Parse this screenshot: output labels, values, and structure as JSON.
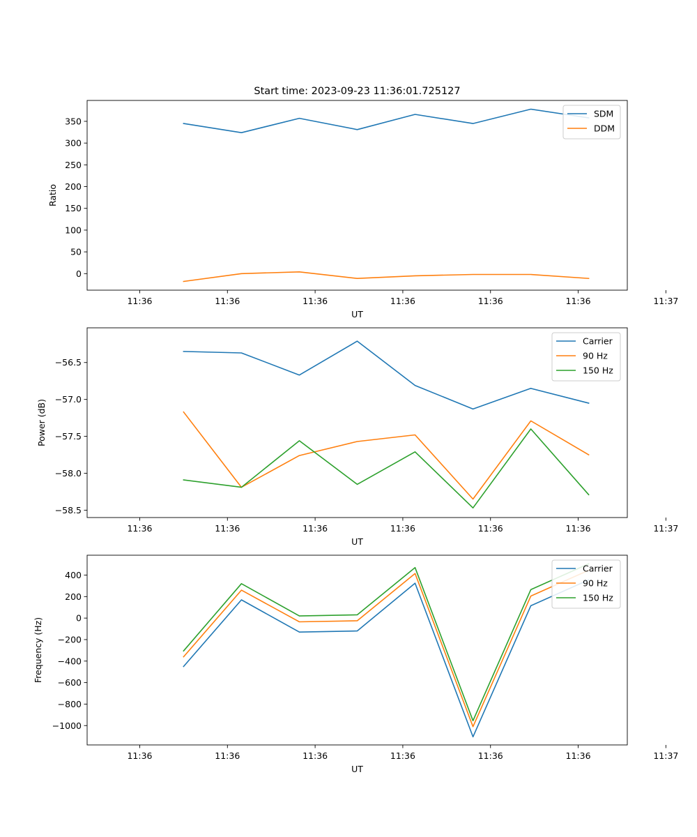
{
  "chart_data": [
    {
      "type": "line",
      "title": "Start time: 2023-09-23 11:36:01.725127",
      "xlabel": "UT",
      "ylabel": "Ratio",
      "xlim": [
        -0.6,
        5.56
      ],
      "ylim": [
        -38,
        398
      ],
      "xtick_values": [
        0,
        1,
        2,
        3,
        4,
        5,
        6
      ],
      "xtick_labels": [
        "11:36",
        "11:36",
        "11:36",
        "11:36",
        "11:36",
        "11:36",
        "11:37"
      ],
      "yticks": [
        0,
        50,
        100,
        150,
        200,
        250,
        300,
        350
      ],
      "legend_position": "top-right",
      "x": [
        0.5,
        1.16,
        1.82,
        2.48,
        3.14,
        3.8,
        4.46,
        5.12
      ],
      "series": [
        {
          "name": "SDM",
          "color": "#1f77b4",
          "values": [
            345,
            324,
            357,
            331,
            366,
            345,
            378,
            358
          ]
        },
        {
          "name": "DDM",
          "color": "#ff7f0e",
          "values": [
            -18,
            0,
            4,
            -11,
            -5,
            -2,
            -2,
            -11
          ]
        }
      ]
    },
    {
      "type": "line",
      "title": "",
      "xlabel": "UT",
      "ylabel": "Power (dB)",
      "xlim": [
        -0.6,
        5.56
      ],
      "ylim": [
        -58.6,
        -56.03
      ],
      "xtick_values": [
        0,
        1,
        2,
        3,
        4,
        5,
        6
      ],
      "xtick_labels": [
        "11:36",
        "11:36",
        "11:36",
        "11:36",
        "11:36",
        "11:36",
        "11:37"
      ],
      "yticks": [
        -58.5,
        -58.0,
        -57.5,
        -57.0,
        -56.5
      ],
      "ytick_labels": [
        "−58.5",
        "−58.0",
        "−57.5",
        "−57.0",
        "−56.5"
      ],
      "legend_position": "top-right",
      "x": [
        0.5,
        1.16,
        1.82,
        2.48,
        3.14,
        3.8,
        4.46,
        5.12
      ],
      "series": [
        {
          "name": "Carrier",
          "color": "#1f77b4",
          "values": [
            -56.35,
            -56.37,
            -56.67,
            -56.21,
            -56.81,
            -57.13,
            -56.85,
            -57.05
          ]
        },
        {
          "name": "90 Hz",
          "color": "#ff7f0e",
          "values": [
            -57.17,
            -58.19,
            -57.76,
            -57.57,
            -57.48,
            -58.35,
            -57.29,
            -57.75
          ]
        },
        {
          "name": "150 Hz",
          "color": "#2ca02c",
          "values": [
            -58.09,
            -58.19,
            -57.56,
            -58.15,
            -57.71,
            -58.47,
            -57.4,
            -58.29
          ]
        }
      ]
    },
    {
      "type": "line",
      "title": "",
      "xlabel": "UT",
      "ylabel": "Frequency (Hz)",
      "xlim": [
        -0.6,
        5.56
      ],
      "ylim": [
        -1180,
        585
      ],
      "xtick_values": [
        0,
        1,
        2,
        3,
        4,
        5,
        6
      ],
      "xtick_labels": [
        "11:36",
        "11:36",
        "11:36",
        "11:36",
        "11:36",
        "11:36",
        "11:37"
      ],
      "yticks": [
        -1000,
        -800,
        -600,
        -400,
        -200,
        0,
        200,
        400
      ],
      "ytick_labels": [
        "−1000",
        "−800",
        "−600",
        "−400",
        "−200",
        "0",
        "200",
        "400"
      ],
      "legend_position": "top-right",
      "x": [
        0.5,
        1.16,
        1.82,
        2.48,
        3.14,
        3.8,
        4.46,
        5.12
      ],
      "series": [
        {
          "name": "Carrier",
          "color": "#1f77b4",
          "values": [
            -450,
            170,
            -130,
            -120,
            325,
            -1105,
            115,
            355
          ]
        },
        {
          "name": "90 Hz",
          "color": "#ff7f0e",
          "values": [
            -360,
            260,
            -35,
            -25,
            415,
            -1010,
            205,
            445
          ]
        },
        {
          "name": "150 Hz",
          "color": "#2ca02c",
          "values": [
            -305,
            320,
            20,
            30,
            470,
            -955,
            265,
            505
          ]
        }
      ]
    }
  ]
}
